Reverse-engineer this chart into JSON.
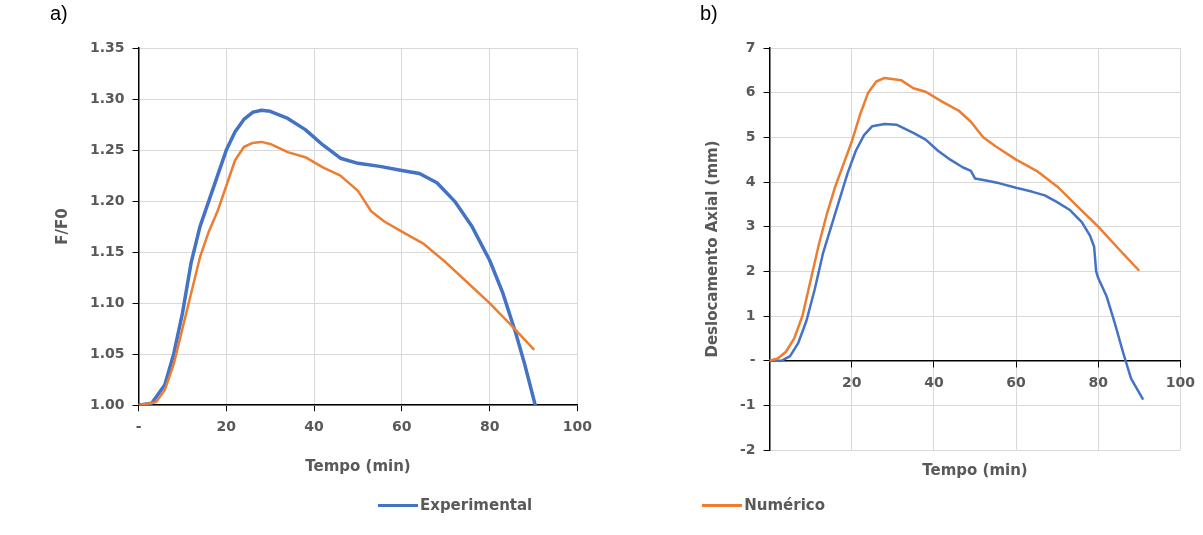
{
  "chart_data": [
    {
      "type": "line",
      "title": "a)",
      "xlabel": "Tempo (min)",
      "ylabel": "F/F0",
      "xlim": [
        0,
        100
      ],
      "xticks": [
        {
          "value": 0,
          "label": "-"
        },
        20,
        40,
        60,
        80,
        100
      ],
      "ylim": [
        1.0,
        1.35
      ],
      "yticks": [
        {
          "value": 1.0,
          "label": "1.00"
        },
        {
          "value": 1.05,
          "label": "1.05"
        },
        {
          "value": 1.1,
          "label": "1.10"
        },
        {
          "value": 1.15,
          "label": "1.15"
        },
        {
          "value": 1.2,
          "label": "1.20"
        },
        {
          "value": 1.25,
          "label": "1.25"
        },
        {
          "value": 1.3,
          "label": "1.30"
        },
        {
          "value": 1.35,
          "label": "1.35"
        }
      ],
      "grid": true,
      "legend": "bottom",
      "marker": "none",
      "line_style": "solid",
      "series": [
        {
          "name": "Experimental",
          "color": "#4472c4",
          "x": [
            0,
            3,
            6,
            8,
            10,
            12,
            14,
            16,
            18,
            20,
            22,
            24,
            26,
            28,
            30,
            34,
            38,
            42,
            46,
            50,
            55,
            60,
            64,
            68,
            72,
            76,
            80,
            83,
            86,
            88,
            90.4
          ],
          "values": [
            1.0,
            1.002,
            1.02,
            1.05,
            1.09,
            1.14,
            1.175,
            1.2,
            1.225,
            1.25,
            1.268,
            1.28,
            1.287,
            1.289,
            1.288,
            1.281,
            1.27,
            1.255,
            1.242,
            1.237,
            1.234,
            1.23,
            1.227,
            1.218,
            1.2,
            1.175,
            1.142,
            1.11,
            1.07,
            1.04,
            1.0
          ]
        },
        {
          "name": "Numérico",
          "color": "#ed7d31",
          "x": [
            0,
            4,
            6,
            8,
            10,
            12,
            14,
            16,
            18,
            20,
            22,
            24,
            26,
            28,
            30,
            34,
            38,
            42,
            46,
            50,
            53,
            56,
            60,
            65,
            70,
            75,
            80,
            85,
            90
          ],
          "values": [
            1.0,
            1.003,
            1.015,
            1.04,
            1.075,
            1.11,
            1.145,
            1.17,
            1.19,
            1.215,
            1.24,
            1.253,
            1.257,
            1.258,
            1.256,
            1.248,
            1.243,
            1.233,
            1.225,
            1.21,
            1.19,
            1.18,
            1.17,
            1.158,
            1.14,
            1.12,
            1.1,
            1.078,
            1.055
          ]
        }
      ]
    },
    {
      "type": "line",
      "title": "b)",
      "xlabel": "Tempo (min)",
      "ylabel": "Deslocamento Axial (mm)",
      "xlim": [
        0,
        100
      ],
      "xticks": [
        20,
        40,
        60,
        80,
        100
      ],
      "ylim": [
        -2,
        7
      ],
      "yticks": [
        -2,
        -1,
        {
          "value": 0,
          "label": "-"
        },
        1,
        2,
        3,
        4,
        5,
        6,
        7
      ],
      "grid": true,
      "marker": "none",
      "line_style": "solid",
      "series": [
        {
          "color": "#4472c4",
          "x": [
            0,
            3,
            5,
            7,
            9,
            11,
            13,
            15,
            17,
            19,
            21,
            23,
            25,
            28,
            31,
            35,
            38,
            41,
            44,
            47,
            49,
            50,
            53,
            56,
            60,
            64,
            67,
            70,
            73,
            76,
            78,
            79,
            79.5,
            80,
            82,
            84,
            86,
            88,
            90.8
          ],
          "values": [
            0,
            0,
            0.1,
            0.4,
            0.9,
            1.6,
            2.4,
            3.0,
            3.6,
            4.2,
            4.7,
            5.05,
            5.25,
            5.3,
            5.28,
            5.1,
            4.95,
            4.7,
            4.5,
            4.33,
            4.25,
            4.08,
            4.03,
            3.97,
            3.87,
            3.78,
            3.7,
            3.55,
            3.38,
            3.1,
            2.8,
            2.55,
            2.0,
            1.85,
            1.45,
            0.85,
            0.2,
            -0.4,
            -0.85
          ]
        },
        {
          "color": "#ed7d31",
          "x": [
            0,
            2,
            4,
            6,
            8,
            10,
            12,
            14,
            16,
            18,
            20,
            22,
            24,
            26,
            28,
            32,
            35,
            38,
            42,
            46,
            49,
            52,
            55,
            60,
            65,
            70,
            75,
            80,
            85,
            89.8
          ],
          "values": [
            0,
            0.05,
            0.2,
            0.5,
            1.0,
            1.8,
            2.6,
            3.3,
            3.9,
            4.4,
            4.9,
            5.5,
            6.0,
            6.25,
            6.33,
            6.28,
            6.1,
            6.02,
            5.8,
            5.6,
            5.35,
            5.0,
            4.8,
            4.5,
            4.25,
            3.9,
            3.45,
            3.0,
            2.5,
            2.03
          ]
        }
      ]
    }
  ]
}
